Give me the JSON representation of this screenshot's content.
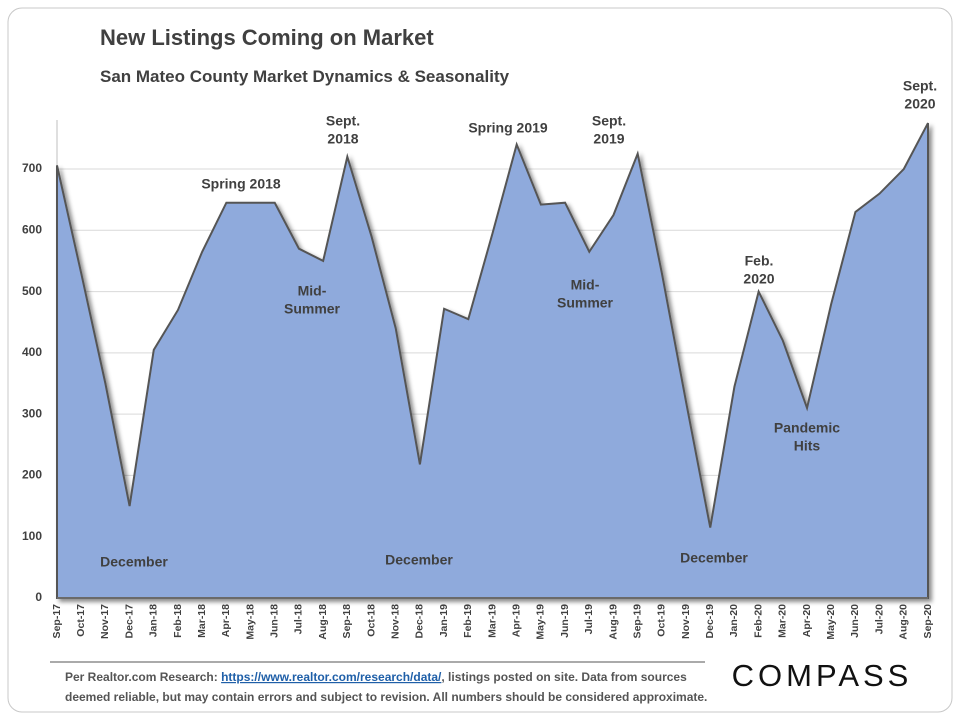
{
  "chart_data": {
    "type": "area",
    "title": "New Listings Coming on Market",
    "subtitle": "San Mateo County Market Dynamics & Seasonality",
    "categories": [
      "Sep-17",
      "Oct-17",
      "Nov-17",
      "Dec-17",
      "Jan-18",
      "Feb-18",
      "Mar-18",
      "Apr-18",
      "May-18",
      "Jun-18",
      "Jul-18",
      "Aug-18",
      "Sep-18",
      "Oct-18",
      "Nov-18",
      "Dec-18",
      "Jan-19",
      "Feb-19",
      "Mar-19",
      "Apr-19",
      "May-19",
      "Jun-19",
      "Jul-19",
      "Aug-19",
      "Sep-19",
      "Oct-19",
      "Nov-19",
      "Dec-19",
      "Jan-20",
      "Feb-20",
      "Mar-20",
      "Apr-20",
      "May-20",
      "Jun-20",
      "Jul-20",
      "Aug-20",
      "Sep-20"
    ],
    "values": [
      706,
      530,
      350,
      150,
      405,
      470,
      565,
      645,
      645,
      645,
      570,
      550,
      720,
      590,
      440,
      218,
      472,
      455,
      595,
      740,
      642,
      645,
      565,
      625,
      725,
      530,
      320,
      115,
      345,
      500,
      420,
      310,
      480,
      630,
      660,
      700,
      775
    ],
    "color": "#8faadc",
    "ylim": [
      0,
      780
    ],
    "yticks": [
      0,
      100,
      200,
      300,
      400,
      500,
      600,
      700
    ],
    "grid": true,
    "annotations": [
      [
        "Spring 2018"
      ],
      [
        "Sept.",
        "2018"
      ],
      [
        "Mid-",
        "Summer"
      ],
      [
        "December"
      ],
      [
        "December"
      ],
      [
        "Spring 2019"
      ],
      [
        "Sept.",
        "2019"
      ],
      [
        "Mid-",
        "Summer"
      ],
      [
        "December"
      ],
      [
        "Feb.",
        "2020"
      ],
      [
        "Pandemic",
        "Hits"
      ],
      [
        "Sept.",
        "2020"
      ]
    ]
  },
  "footer": {
    "prefix": "Per Realtor.com Research:",
    "link": "https://www.realtor.com/research/data/",
    "line1_rest": ", listings posted on site. Data from sources",
    "line2": "deemed reliable, but may contain errors and subject to revision. All numbers should be considered approximate.",
    "logo": "COMPASS"
  }
}
